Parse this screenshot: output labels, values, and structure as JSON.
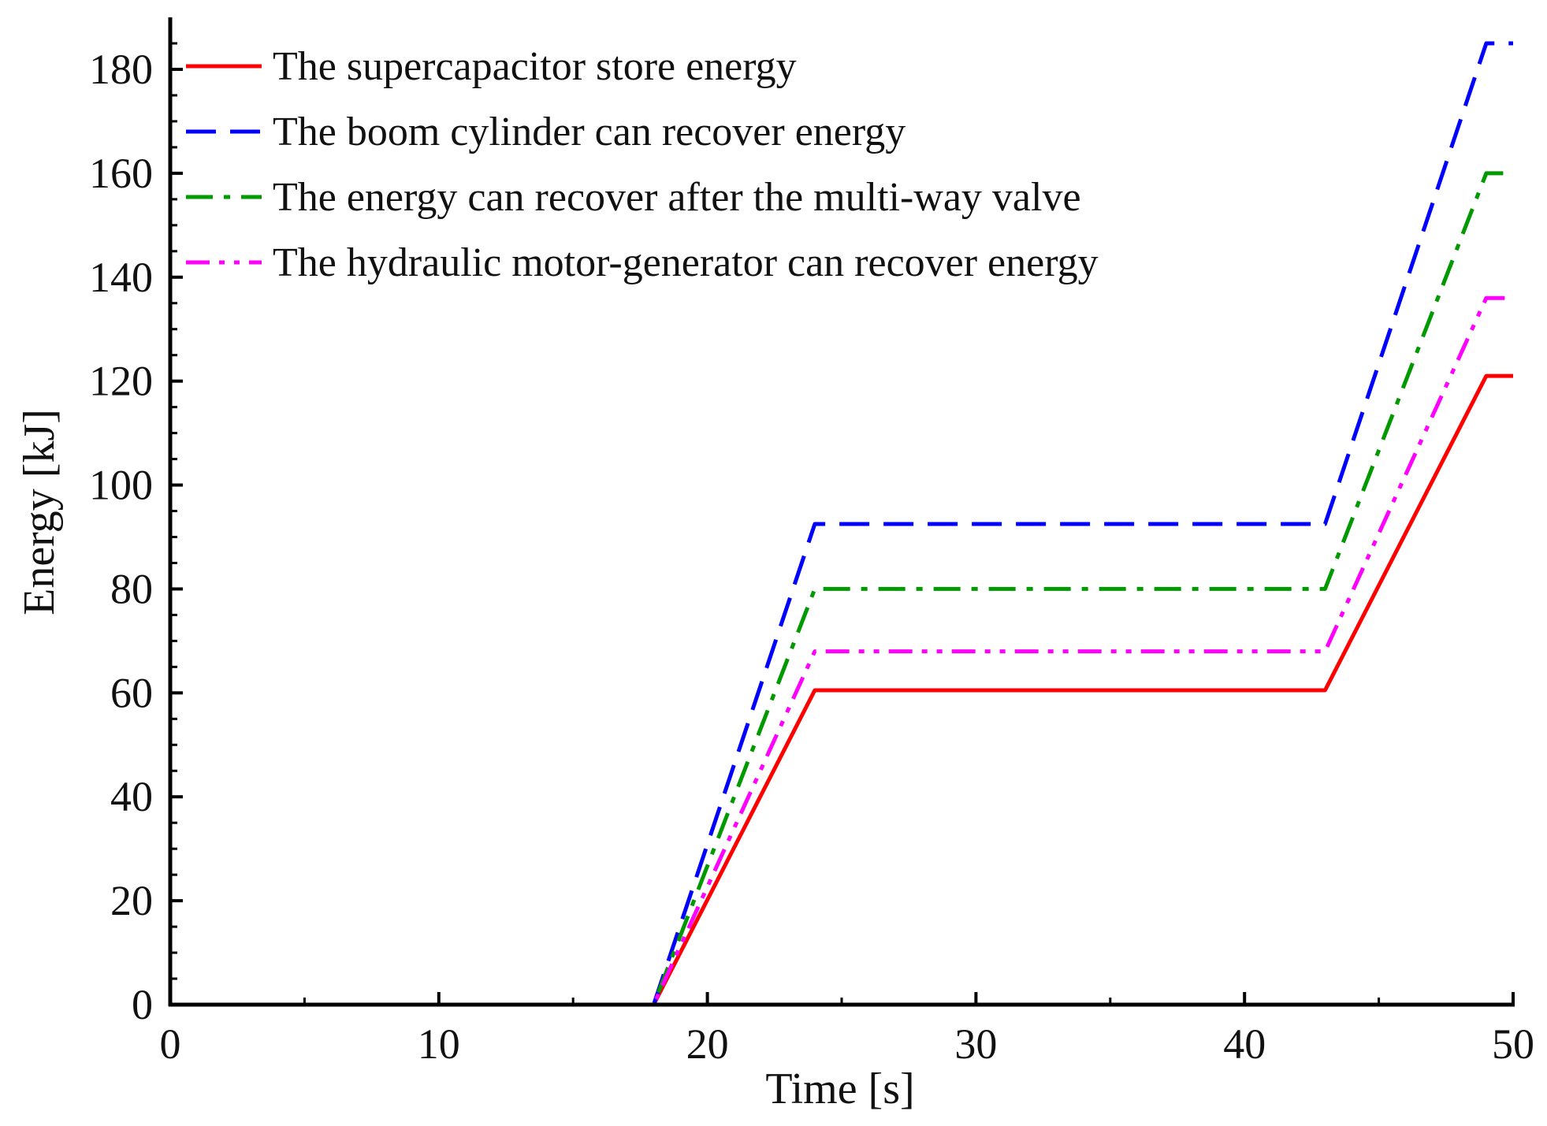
{
  "chart_data": {
    "type": "line",
    "title": "",
    "xlabel": "Time [s]",
    "ylabel": "Energy [kJ]",
    "xlim": [
      0,
      50
    ],
    "ylim": [
      0,
      190
    ],
    "xticks": [
      0,
      10,
      20,
      30,
      40,
      50
    ],
    "yticks": [
      0,
      20,
      40,
      60,
      80,
      100,
      120,
      140,
      160,
      180
    ],
    "grid": false,
    "legend_position": "top-left",
    "series": [
      {
        "name": "The supercapacitor store energy",
        "color": "#ff0000",
        "style": "solid",
        "x": [
          0,
          18,
          24,
          43,
          49,
          50
        ],
        "y": [
          0,
          0,
          60.5,
          60.5,
          121,
          121
        ]
      },
      {
        "name": "The boom cylinder can recover energy",
        "color": "#0000ff",
        "style": "dash",
        "x": [
          0,
          18,
          24,
          43,
          49,
          50
        ],
        "y": [
          0,
          0,
          92.5,
          92.5,
          185,
          185
        ]
      },
      {
        "name": "The energy can recover after the multi-way valve",
        "color": "#009900",
        "style": "dashdot",
        "x": [
          0,
          18,
          24,
          43,
          49,
          50
        ],
        "y": [
          0,
          0,
          80,
          80,
          160,
          160
        ]
      },
      {
        "name": "The hydraulic motor-generator can recover energy",
        "color": "#ff00ff",
        "style": "dashdotdot",
        "x": [
          0,
          18,
          24,
          43,
          49,
          50
        ],
        "y": [
          0,
          0,
          68,
          68,
          136,
          136
        ]
      }
    ]
  }
}
